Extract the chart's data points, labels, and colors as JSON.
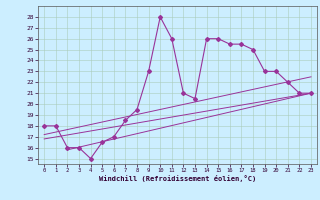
{
  "xlabel": "Windchill (Refroidissement éolien,°C)",
  "bg_color": "#cceeff",
  "line_color": "#993399",
  "x_main": [
    0,
    1,
    2,
    3,
    4,
    5,
    6,
    7,
    8,
    9,
    10,
    11,
    12,
    13,
    14,
    15,
    16,
    17,
    18,
    19,
    20,
    21,
    22,
    23
  ],
  "y_main": [
    18,
    18,
    16,
    16,
    15,
    16.5,
    17,
    18.5,
    19.5,
    23,
    28,
    26,
    21,
    20.5,
    26,
    26,
    25.5,
    25.5,
    25,
    23,
    23,
    22,
    21,
    21
  ],
  "line1_x": [
    0,
    23
  ],
  "line1_y": [
    16.8,
    21.0
  ],
  "line2_x": [
    0,
    23
  ],
  "line2_y": [
    17.2,
    22.5
  ],
  "line3_x": [
    2,
    23
  ],
  "line3_y": [
    15.8,
    21.0
  ],
  "ylim": [
    14.5,
    29.0
  ],
  "xlim": [
    -0.5,
    23.5
  ],
  "yticks": [
    15,
    16,
    17,
    18,
    19,
    20,
    21,
    22,
    23,
    24,
    25,
    26,
    27,
    28
  ],
  "xticks": [
    0,
    1,
    2,
    3,
    4,
    5,
    6,
    7,
    8,
    9,
    10,
    11,
    12,
    13,
    14,
    15,
    16,
    17,
    18,
    19,
    20,
    21,
    22,
    23
  ]
}
